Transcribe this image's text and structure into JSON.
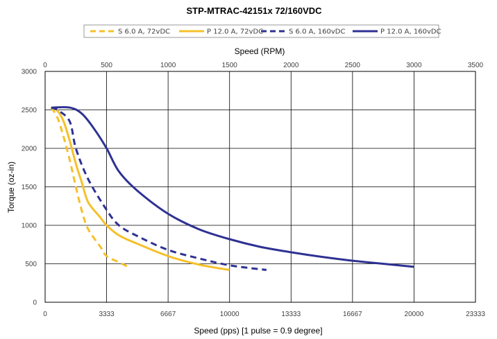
{
  "chart_data": {
    "type": "line",
    "title": "STP-MTRAC-42151x 72/160VDC",
    "xlabel": "Speed (pps)  [1 pulse = 0.9 degree]",
    "x2label": "Speed (RPM)",
    "ylabel": "Torque (oz-in)",
    "xlim": [
      0,
      23333
    ],
    "x2lim": [
      0,
      3500
    ],
    "ylim": [
      0,
      3000
    ],
    "xticks": [
      "0",
      "3333",
      "6667",
      "10000",
      "13333",
      "16667",
      "20000",
      "23333"
    ],
    "x2ticks": [
      "0",
      "500",
      "1000",
      "1500",
      "2000",
      "2500",
      "3000",
      "3500"
    ],
    "yticks": [
      "0",
      "500",
      "1000",
      "1500",
      "2000",
      "2500",
      "3000"
    ],
    "grid": true,
    "legend_position": "top",
    "series": [
      {
        "name": "S 6.0 A, 72vDC",
        "color": "#F5C02A",
        "dash": true,
        "x": [
          333,
          667,
          1000,
          1333,
          1667,
          2000,
          2333,
          3000,
          3333,
          4000,
          4500
        ],
        "y": [
          2530,
          2400,
          2150,
          1850,
          1500,
          1180,
          950,
          720,
          600,
          520,
          460
        ]
      },
      {
        "name": "P 12.0 A, 72vDC",
        "color": "#F5C02A",
        "dash": false,
        "x": [
          333,
          667,
          1000,
          1333,
          1667,
          2000,
          2333,
          3000,
          3333,
          4000,
          5000,
          6667,
          8333,
          10000
        ],
        "y": [
          2530,
          2490,
          2350,
          2100,
          1800,
          1550,
          1300,
          1100,
          1000,
          870,
          760,
          600,
          490,
          420
        ]
      },
      {
        "name": "S 6.0 A, 160vDC",
        "color": "#2E3192",
        "dash": true,
        "x": [
          333,
          667,
          1333,
          1667,
          2333,
          3333,
          4000,
          5000,
          6667,
          8333,
          10000,
          12000
        ],
        "y": [
          2530,
          2500,
          2350,
          2000,
          1600,
          1200,
          1000,
          860,
          680,
          570,
          480,
          420
        ]
      },
      {
        "name": "P 12.0 A, 160vDC",
        "color": "#2E3192",
        "dash": false,
        "x": [
          333,
          1333,
          2000,
          2667,
          3333,
          4000,
          5000,
          6667,
          8333,
          10000,
          11667,
          13333,
          15000,
          16667,
          18333,
          20000
        ],
        "y": [
          2530,
          2530,
          2450,
          2250,
          2000,
          1700,
          1450,
          1150,
          950,
          820,
          720,
          650,
          590,
          540,
          500,
          460
        ]
      }
    ]
  }
}
